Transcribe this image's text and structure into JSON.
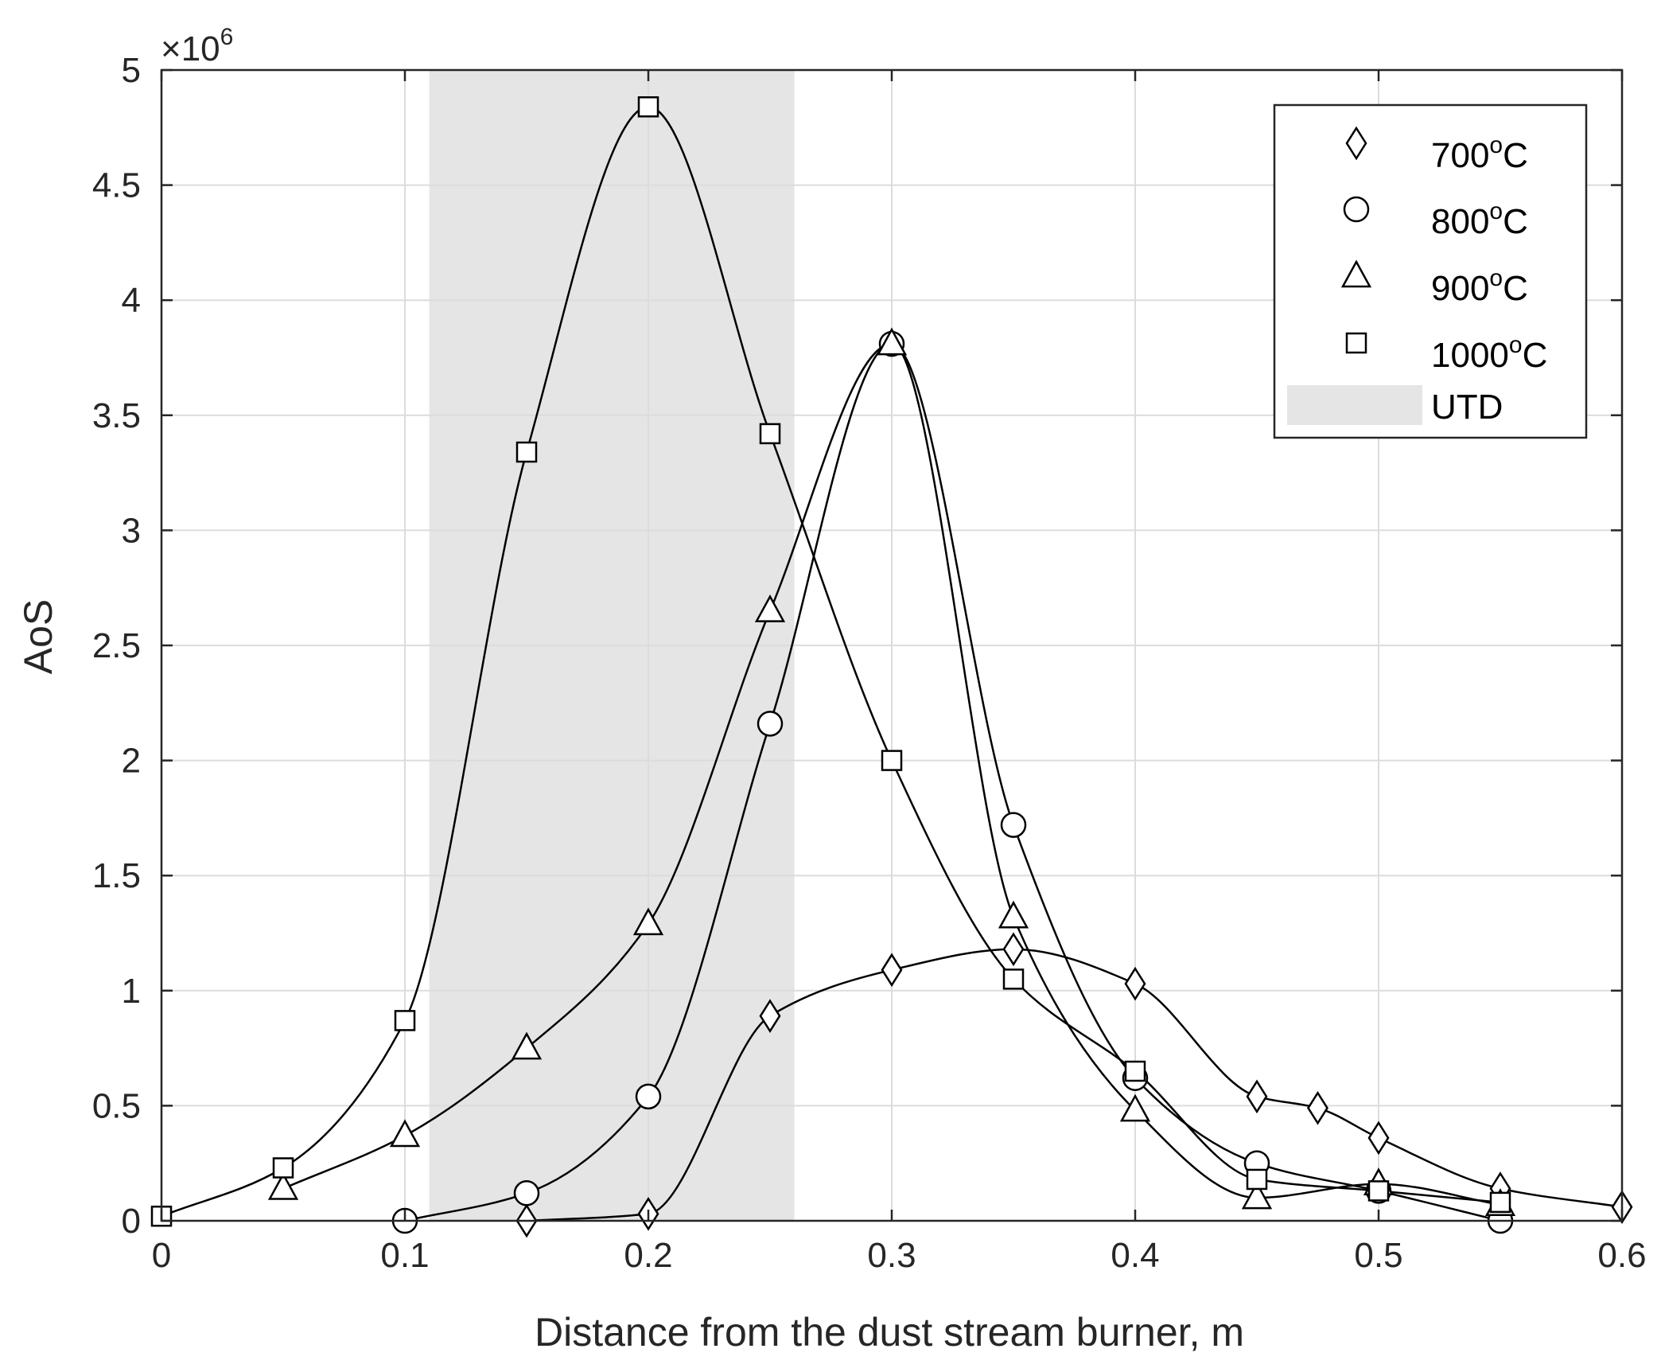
{
  "chart_data": {
    "type": "line",
    "title": "",
    "xlabel": "Distance from the dust stream burner, m",
    "ylabel": "AoS",
    "xlim": [
      0,
      0.6
    ],
    "ylim": [
      0,
      5
    ],
    "y_multiplier_label": "×10",
    "y_multiplier_exponent": "6",
    "x_ticks": [
      "0",
      "0.1",
      "0.2",
      "0.3",
      "0.4",
      "0.5",
      "0.6"
    ],
    "y_ticks": [
      "0",
      "0.5",
      "1",
      "1.5",
      "2",
      "2.5",
      "3",
      "3.5",
      "4",
      "4.5",
      "5"
    ],
    "grid": true,
    "legend_position": "top-right",
    "shaded_region": {
      "name": "UTD",
      "x_range": [
        0.11,
        0.26
      ],
      "color": "#e5e5e5"
    },
    "series": [
      {
        "name": "700",
        "unit": "°C",
        "marker": "diamond",
        "x": [
          0.15,
          0.2,
          0.25,
          0.3,
          0.35,
          0.4,
          0.45,
          0.475,
          0.5,
          0.55,
          0.6
        ],
        "y": [
          0.0,
          0.03,
          0.89,
          1.09,
          1.18,
          1.03,
          0.54,
          0.49,
          0.36,
          0.14,
          0.06
        ]
      },
      {
        "name": "800",
        "unit": "°C",
        "marker": "circle",
        "x": [
          0.1,
          0.15,
          0.2,
          0.25,
          0.3,
          0.35,
          0.4,
          0.45,
          0.5,
          0.55
        ],
        "y": [
          0.0,
          0.12,
          0.54,
          2.16,
          3.81,
          1.72,
          0.62,
          0.25,
          0.13,
          0.0
        ]
      },
      {
        "name": "900",
        "unit": "°C",
        "marker": "triangle",
        "x": [
          0.05,
          0.1,
          0.15,
          0.2,
          0.25,
          0.3,
          0.35,
          0.4,
          0.45,
          0.5,
          0.55
        ],
        "y": [
          0.14,
          0.37,
          0.75,
          1.29,
          2.65,
          3.81,
          1.32,
          0.48,
          0.1,
          0.16,
          0.07
        ]
      },
      {
        "name": "1000",
        "unit": "°C",
        "marker": "square",
        "x": [
          0.0,
          0.05,
          0.1,
          0.15,
          0.2,
          0.25,
          0.3,
          0.35,
          0.4,
          0.45,
          0.5,
          0.55
        ],
        "y": [
          0.02,
          0.23,
          0.87,
          3.34,
          4.84,
          3.42,
          2.0,
          1.05,
          0.65,
          0.18,
          0.13,
          0.08
        ]
      }
    ]
  }
}
